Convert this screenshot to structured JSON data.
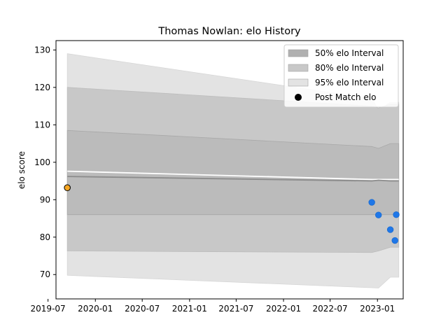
{
  "chart_data": {
    "type": "area",
    "title": "Thomas Nowlan: elo History",
    "xlabel": "",
    "ylabel": "elo score",
    "ylim": [
      63.5,
      132.5
    ],
    "xlim": [
      "2019-08-01",
      "2023-04-11"
    ],
    "yticks": [
      70,
      80,
      90,
      100,
      110,
      120,
      130
    ],
    "xticks": [
      "2019-07",
      "2020-01",
      "2020-07",
      "2021-01",
      "2021-07",
      "2022-01",
      "2022-07",
      "2023-01"
    ],
    "legend_position": "top-right",
    "legend": [
      {
        "label": "50% elo Interval",
        "swatch": "#b0b0b0"
      },
      {
        "label": "80% elo Interval",
        "swatch": "#c8c8c8"
      },
      {
        "label": "95% elo Interval",
        "swatch": "#e3e3e3"
      },
      {
        "label": "Post Match elo",
        "marker": "#000000"
      }
    ],
    "x": [
      "2019-09-14",
      "2022-12-10",
      "2023-01-05",
      "2023-02-20",
      "2023-03-10",
      "2023-03-15",
      "2023-03-25"
    ],
    "band_95": {
      "lower": [
        69.8,
        66.5,
        66.4,
        69.3,
        69.3,
        69.3,
        69.3
      ],
      "upper": [
        129.0,
        117.0,
        114.0,
        116.0,
        116.0,
        116.0,
        116.0
      ]
    },
    "band_80": {
      "lower": [
        76.3,
        75.9,
        76.3,
        77.3,
        77.3,
        77.3,
        77.3
      ],
      "upper": [
        120.0,
        115.0,
        114.5,
        115.5,
        115.5,
        115.5,
        115.5
      ]
    },
    "band_50": {
      "lower": [
        86.0,
        86.0,
        86.0,
        86.0,
        86.0,
        86.0,
        86.0
      ],
      "upper": [
        108.5,
        104.2,
        103.7,
        105.0,
        105.0,
        105.0,
        105.0
      ]
    },
    "mean_line": [
      96.2,
      95.0,
      95.2,
      95.0,
      95.0,
      95.0,
      95.0
    ],
    "upper_line": [
      97.6,
      95.4,
      95.4,
      95.4,
      95.4,
      95.4,
      95.4
    ],
    "initial_point": {
      "x": "2019-09-14",
      "y": 93.2,
      "color": "#f5a623"
    },
    "post_match_points": [
      {
        "x": "2022-12-10",
        "y": 89.3
      },
      {
        "x": "2023-01-05",
        "y": 85.9
      },
      {
        "x": "2023-02-20",
        "y": 82.0
      },
      {
        "x": "2023-03-10",
        "y": 79.1
      },
      {
        "x": "2023-03-15",
        "y": 86.0
      }
    ],
    "colors": {
      "band_50": "#b0b0b0",
      "band_80": "#c8c8c8",
      "band_95": "#e3e3e3",
      "mean_line": "#8c8c8c",
      "upper_line": "#ffffff",
      "points": "#1f77e8",
      "point_edge": "#1a6bd0"
    }
  }
}
